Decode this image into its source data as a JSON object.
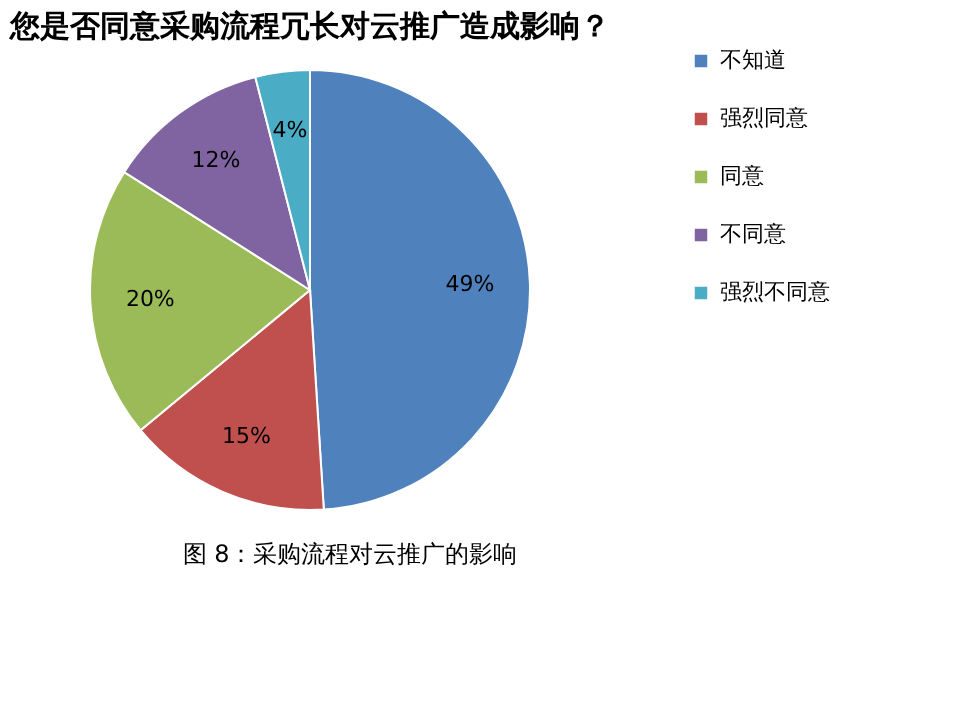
{
  "chart_data": {
    "type": "pie",
    "title": "您是否同意采购流程冗长对云推广造成影响？",
    "categories": [
      "不知道",
      "强烈同意",
      "同意",
      "不同意",
      "强烈不同意"
    ],
    "values": [
      49,
      15,
      20,
      12,
      4
    ],
    "colors": [
      "#4f81bd",
      "#c0504d",
      "#9bbb59",
      "#8064a2",
      "#4bacc6"
    ],
    "value_labels": [
      "49%",
      "15%",
      "20%",
      "12%",
      "4%"
    ],
    "legend": "right",
    "annotations": [
      "图 8：采购流程对云推广的影响"
    ]
  }
}
